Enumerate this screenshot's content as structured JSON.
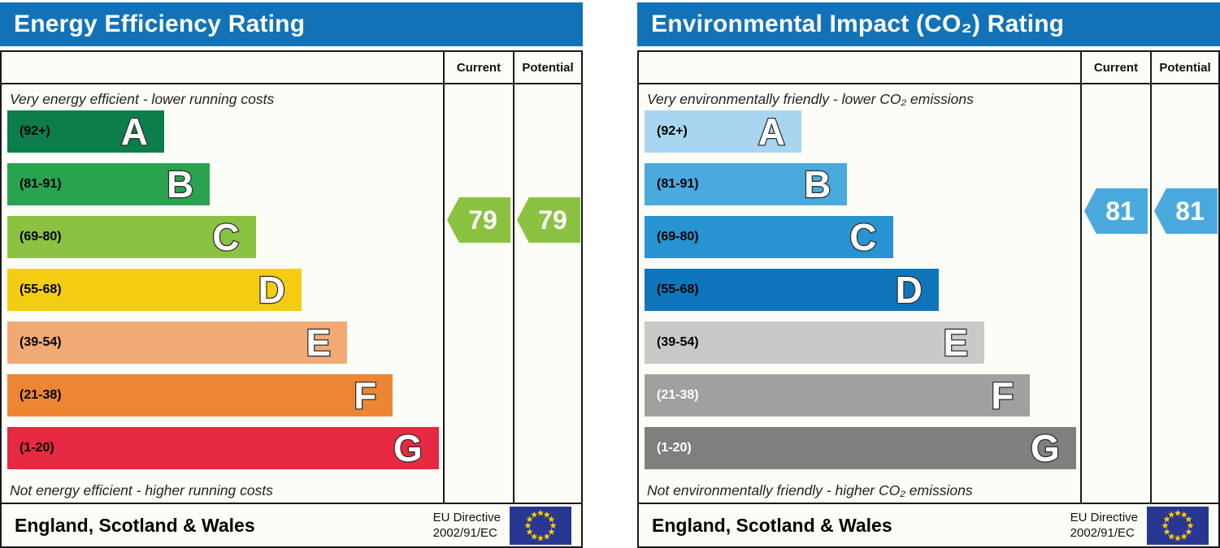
{
  "styles": {
    "header_bg": "#1272b8",
    "border_color": "#1a1a1a",
    "panel_bg": "#fdfdf8",
    "flag_bg": "#283791",
    "flag_star": "#ffcc00"
  },
  "chart_data": [
    {
      "type": "bar",
      "id": "energy-efficiency-rating",
      "title": "Energy Efficiency Rating",
      "columns": [
        "Current",
        "Potential"
      ],
      "top_caption": "Very energy efficient - lower running costs",
      "bottom_caption": "Not energy efficient - higher running costs",
      "bands": [
        {
          "letter": "A",
          "range_label": "(92+)",
          "min": 92,
          "max": 100,
          "width_pct": 36,
          "color": "#0c7e4c",
          "label_color": "#000000"
        },
        {
          "letter": "B",
          "range_label": "(81-91)",
          "min": 81,
          "max": 91,
          "width_pct": 46.5,
          "color": "#2aa34f",
          "label_color": "#000000"
        },
        {
          "letter": "C",
          "range_label": "(69-80)",
          "min": 69,
          "max": 80,
          "width_pct": 57,
          "color": "#8bc241",
          "label_color": "#000000"
        },
        {
          "letter": "D",
          "range_label": "(55-68)",
          "min": 55,
          "max": 68,
          "width_pct": 67.5,
          "color": "#f4cd12",
          "label_color": "#000000"
        },
        {
          "letter": "E",
          "range_label": "(39-54)",
          "min": 39,
          "max": 54,
          "width_pct": 78,
          "color": "#f1aa74",
          "label_color": "#000000"
        },
        {
          "letter": "F",
          "range_label": "(21-38)",
          "min": 21,
          "max": 38,
          "width_pct": 88.5,
          "color": "#ec8633",
          "label_color": "#000000"
        },
        {
          "letter": "G",
          "range_label": "(1-20)",
          "min": 1,
          "max": 20,
          "width_pct": 99,
          "color": "#e52a41",
          "label_color": "#000000"
        }
      ],
      "current": {
        "value": 79,
        "arrow_color": "#8bc241"
      },
      "potential": {
        "value": 79,
        "arrow_color": "#8bc241"
      },
      "footer": {
        "region": "England, Scotland & Wales",
        "directive_line1": "EU Directive",
        "directive_line2": "2002/91/EC"
      }
    },
    {
      "type": "bar",
      "id": "environmental-impact-co2-rating",
      "title": "Environmental Impact (CO₂) Rating",
      "columns": [
        "Current",
        "Potential"
      ],
      "top_caption": "Very environmentally friendly - lower CO₂ emissions",
      "bottom_caption": "Not environmentally friendly - higher CO₂ emissions",
      "bands": [
        {
          "letter": "A",
          "range_label": "(92+)",
          "min": 92,
          "max": 100,
          "width_pct": 36,
          "color": "#a8d6f0",
          "label_color": "#000000"
        },
        {
          "letter": "B",
          "range_label": "(81-91)",
          "min": 81,
          "max": 91,
          "width_pct": 46.5,
          "color": "#4aaadd",
          "label_color": "#000000"
        },
        {
          "letter": "C",
          "range_label": "(69-80)",
          "min": 69,
          "max": 80,
          "width_pct": 57,
          "color": "#2793d1",
          "label_color": "#000000"
        },
        {
          "letter": "D",
          "range_label": "(55-68)",
          "min": 55,
          "max": 68,
          "width_pct": 67.5,
          "color": "#1076bc",
          "label_color": "#000000"
        },
        {
          "letter": "E",
          "range_label": "(39-54)",
          "min": 39,
          "max": 54,
          "width_pct": 78,
          "color": "#c9c9c9",
          "label_color": "#000000"
        },
        {
          "letter": "F",
          "range_label": "(21-38)",
          "min": 21,
          "max": 38,
          "width_pct": 88.5,
          "color": "#a0a0a0",
          "label_color": "#ffffff"
        },
        {
          "letter": "G",
          "range_label": "(1-20)",
          "min": 1,
          "max": 20,
          "width_pct": 99,
          "color": "#7f7f7f",
          "label_color": "#ffffff"
        }
      ],
      "current": {
        "value": 81,
        "arrow_color": "#4aaadd"
      },
      "potential": {
        "value": 81,
        "arrow_color": "#4aaadd"
      },
      "footer": {
        "region": "England, Scotland & Wales",
        "directive_line1": "EU Directive",
        "directive_line2": "2002/91/EC"
      }
    }
  ]
}
